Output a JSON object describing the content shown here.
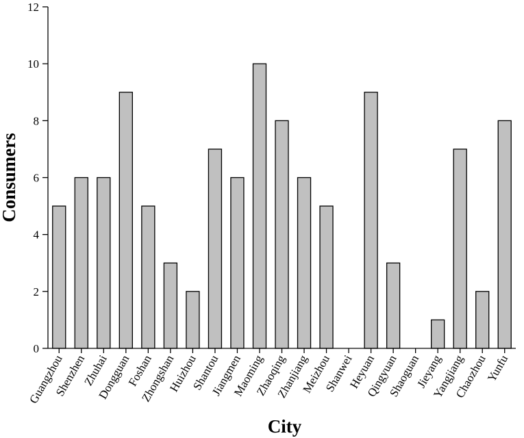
{
  "chart_data": {
    "type": "bar",
    "title": "",
    "xlabel": "City",
    "ylabel": "Consumers",
    "ylim": [
      0,
      12
    ],
    "yticks": [
      0,
      2,
      4,
      6,
      8,
      10,
      12
    ],
    "grid": false,
    "bar_color": "#c0c0c0",
    "categories": [
      "Guangzhou",
      "Shenzhen",
      "Zhuhai",
      "Dongguan",
      "Foshan",
      "Zhongshan",
      "Huizhou",
      "Shantou",
      "Jiangmen",
      "Maoming",
      "Zhaoqing",
      "Zhanjiang",
      "Meizhou",
      "Shanwei",
      "Heyuan",
      "Qingyuan",
      "Shaoguan",
      "Jieyang",
      "Yangjiang",
      "Chaozhou",
      "Yunfu"
    ],
    "values": [
      5,
      6,
      6,
      9,
      5,
      3,
      2,
      7,
      6,
      10,
      8,
      6,
      5,
      0,
      9,
      3,
      0,
      1,
      7,
      2,
      8
    ]
  }
}
